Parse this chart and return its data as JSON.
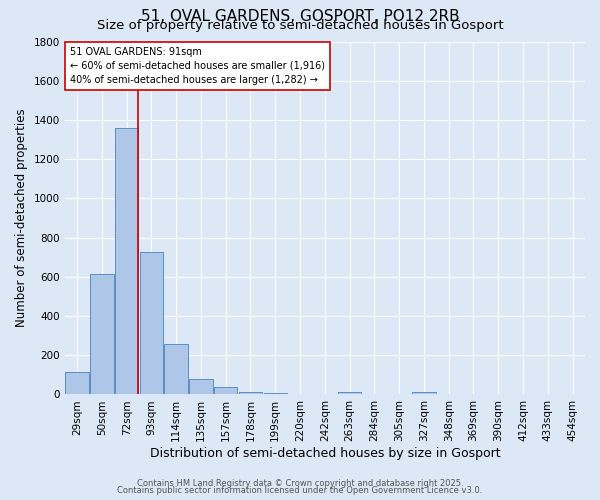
{
  "title": "51, OVAL GARDENS, GOSPORT, PO12 2RB",
  "subtitle": "Size of property relative to semi-detached houses in Gosport",
  "xlabel": "Distribution of semi-detached houses by size in Gosport",
  "ylabel": "Number of semi-detached properties",
  "categories": [
    "29sqm",
    "50sqm",
    "72sqm",
    "93sqm",
    "114sqm",
    "135sqm",
    "157sqm",
    "178sqm",
    "199sqm",
    "220sqm",
    "242sqm",
    "263sqm",
    "284sqm",
    "305sqm",
    "327sqm",
    "348sqm",
    "369sqm",
    "390sqm",
    "412sqm",
    "433sqm",
    "454sqm"
  ],
  "values": [
    113,
    613,
    1360,
    725,
    255,
    80,
    38,
    15,
    5,
    0,
    0,
    12,
    0,
    0,
    13,
    0,
    0,
    0,
    0,
    0,
    0
  ],
  "bar_color": "#aec6e8",
  "bar_edge_color": "#5a8fc2",
  "background_color": "#dce8f5",
  "grid_color": "#ffffff",
  "vline_color": "#cc0000",
  "annotation_text": "51 OVAL GARDENS: 91sqm\n← 60% of semi-detached houses are smaller (1,916)\n40% of semi-detached houses are larger (1,282) →",
  "annotation_box_color": "#ffffff",
  "annotation_box_edge": "#cc0000",
  "ylim": [
    0,
    1800
  ],
  "footer1": "Contains HM Land Registry data © Crown copyright and database right 2025.",
  "footer2": "Contains public sector information licensed under the Open Government Licence v3.0.",
  "title_fontsize": 11,
  "subtitle_fontsize": 9.5,
  "tick_fontsize": 7.5,
  "ylabel_fontsize": 8.5,
  "xlabel_fontsize": 9,
  "footer_fontsize": 6,
  "annotation_fontsize": 7,
  "vline_pos": 2.47
}
